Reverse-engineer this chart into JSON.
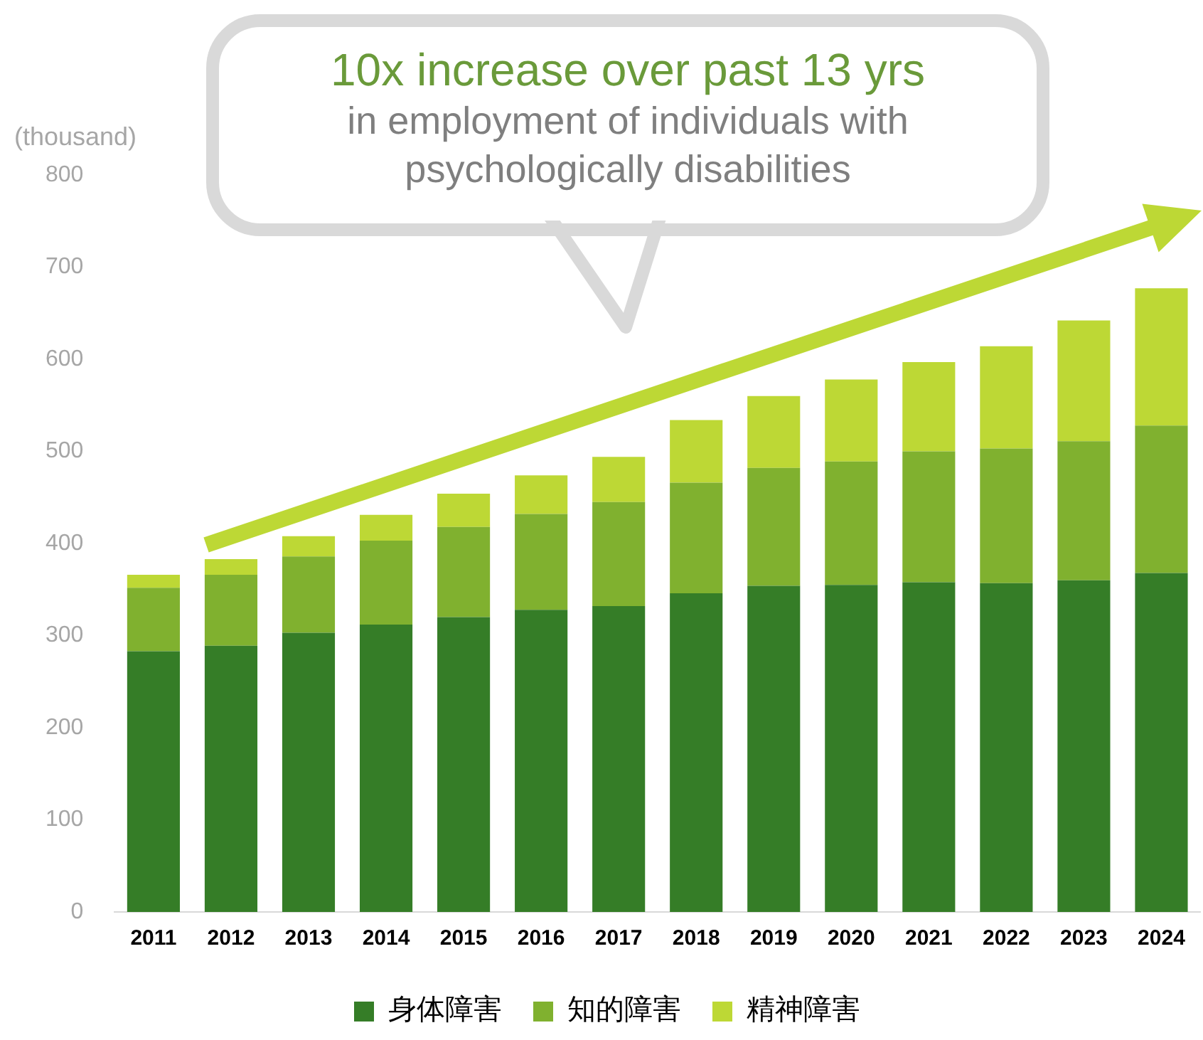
{
  "chart_data": {
    "type": "bar",
    "title": "10x increase over past 13 yrs",
    "subtitle": "in employment of individuals  with psychologically disabilities",
    "ylabel": "(thousand)",
    "categories": [
      "2011",
      "2012",
      "2013",
      "2014",
      "2015",
      "2016",
      "2017",
      "2018",
      "2019",
      "2020",
      "2021",
      "2022",
      "2023",
      "2024"
    ],
    "stacked": true,
    "ylim": [
      0,
      800
    ],
    "yticks": [
      0,
      100,
      200,
      300,
      400,
      500,
      600,
      700,
      800
    ],
    "grid": false,
    "legend": "bottom",
    "series": [
      {
        "name": "身体障害",
        "color": "#357d27",
        "values": [
          283,
          289,
          303,
          312,
          320,
          328,
          332,
          346,
          354,
          355,
          358,
          357,
          360,
          368
        ]
      },
      {
        "name": "知的障害",
        "color": "#80b12f",
        "values": [
          69,
          77,
          83,
          91,
          98,
          104,
          113,
          120,
          128,
          134,
          142,
          146,
          151,
          160
        ]
      },
      {
        "name": "精神障害",
        "color": "#bdd835",
        "values": [
          14,
          17,
          22,
          28,
          36,
          42,
          49,
          68,
          78,
          89,
          97,
          111,
          131,
          149
        ]
      }
    ]
  }
}
